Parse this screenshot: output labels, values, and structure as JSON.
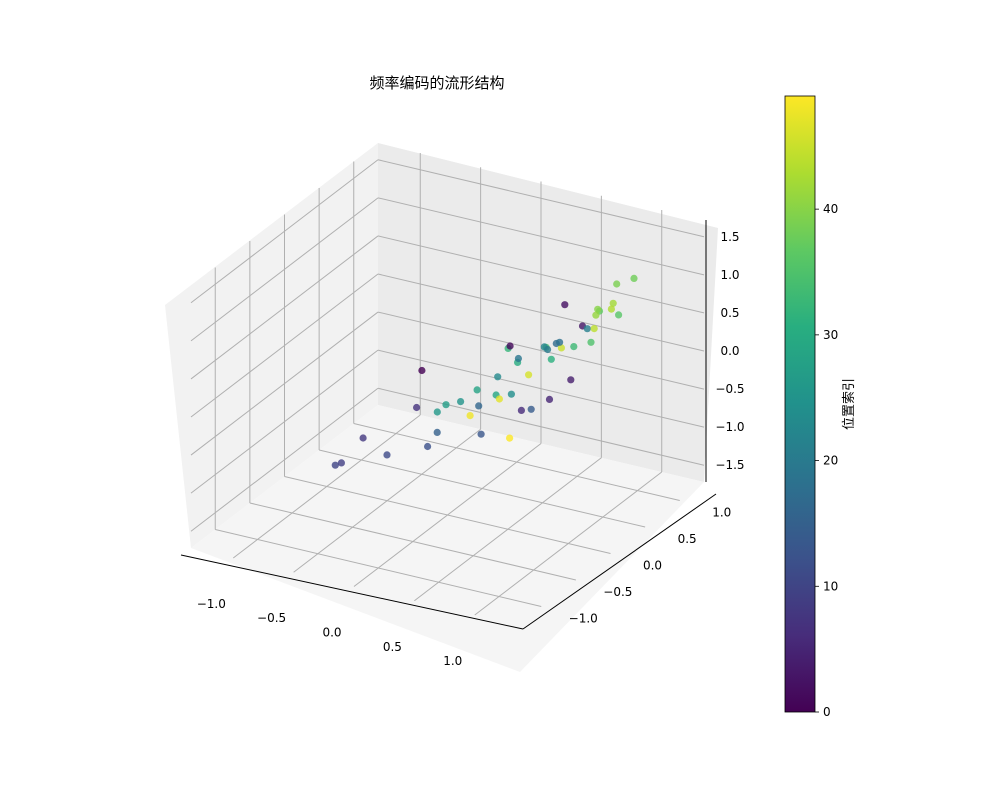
{
  "chart_data": {
    "type": "scatter3d",
    "title": "频率编码的流形结构",
    "xlabel": "",
    "ylabel": "",
    "zlabel": "",
    "x_ticks": [
      "−1.0",
      "−0.5",
      "0.0",
      "0.5",
      "1.0"
    ],
    "y_ticks": [
      "−1.0",
      "−0.5",
      "0.0",
      "0.5",
      "1.0"
    ],
    "z_ticks": [
      "−1.5",
      "−1.0",
      "−0.5",
      "0.0",
      "0.5",
      "1.0",
      "1.5"
    ],
    "grid": true,
    "colormap": "viridis",
    "colorbar": {
      "label": "位置索引",
      "range": [
        0,
        49
      ],
      "ticks": [
        "0",
        "10",
        "20",
        "30",
        "40"
      ]
    },
    "points": [
      {
        "index": 0,
        "x": 0.98,
        "y": 0.35,
        "z": 0.99
      },
      {
        "index": 1,
        "x": 0.7,
        "y": 0.92,
        "z": 1.33
      },
      {
        "index": 2,
        "x": 0.05,
        "y": 1.0,
        "z": 1.45
      },
      {
        "index": 3,
        "x": -0.45,
        "y": 0.86,
        "z": 0.77
      },
      {
        "index": 4,
        "x": -0.7,
        "y": 0.62,
        "z": -0.2
      },
      {
        "index": 5,
        "x": -0.95,
        "y": 0.3,
        "z": -0.75
      },
      {
        "index": 6,
        "x": -0.98,
        "y": 0.05,
        "z": -1.01
      },
      {
        "index": 7,
        "x": -0.6,
        "y": -0.6,
        "z": -0.95
      },
      {
        "index": 8,
        "x": -0.35,
        "y": -0.9,
        "z": -1.29
      },
      {
        "index": 9,
        "x": 0.05,
        "y": -0.85,
        "z": -1.32
      },
      {
        "index": 10,
        "x": 0.4,
        "y": -0.7,
        "z": -1.05
      },
      {
        "index": 11,
        "x": 0.35,
        "y": -0.3,
        "z": -0.8
      },
      {
        "index": 12,
        "x": 0.2,
        "y": -0.05,
        "z": -0.7
      },
      {
        "index": 13,
        "x": -0.05,
        "y": 0.25,
        "z": -0.6
      },
      {
        "index": 14,
        "x": -0.25,
        "y": 0.55,
        "z": -0.3
      },
      {
        "index": 15,
        "x": -0.2,
        "y": -0.2,
        "z": -0.85
      },
      {
        "index": 16,
        "x": -0.45,
        "y": 0.0,
        "z": -0.6
      },
      {
        "index": 17,
        "x": -0.35,
        "y": 0.7,
        "z": 0.55
      },
      {
        "index": 18,
        "x": -0.05,
        "y": 0.9,
        "z": 0.85
      },
      {
        "index": 19,
        "x": -0.5,
        "y": 0.3,
        "z": 0.1
      },
      {
        "index": 20,
        "x": -0.4,
        "y": 0.6,
        "z": 0.4
      },
      {
        "index": 21,
        "x": -0.45,
        "y": 0.9,
        "z": 0.75
      },
      {
        "index": 22,
        "x": -0.7,
        "y": 0.4,
        "z": 0.15
      },
      {
        "index": 23,
        "x": -0.55,
        "y": 0.1,
        "z": -0.25
      },
      {
        "index": 24,
        "x": -0.4,
        "y": 0.3,
        "z": -0.3
      },
      {
        "index": 25,
        "x": -0.45,
        "y": -0.15,
        "z": -0.6
      },
      {
        "index": 26,
        "x": -0.55,
        "y": -0.4,
        "z": -0.9
      },
      {
        "index": 27,
        "x": -0.85,
        "y": -0.5,
        "z": -1.05
      },
      {
        "index": 28,
        "x": -0.95,
        "y": -0.3,
        "z": -0.85
      },
      {
        "index": 29,
        "x": -1.05,
        "y": -0.2,
        "z": -0.95
      },
      {
        "index": 30,
        "x": -1.1,
        "y": -0.05,
        "z": -0.5
      },
      {
        "index": 31,
        "x": -1.15,
        "y": 0.2,
        "z": -0.4
      },
      {
        "index": 32,
        "x": -1.05,
        "y": -0.1,
        "z": -0.3
      },
      {
        "index": 33,
        "x": -1.3,
        "y": 0.3,
        "z": -0.3
      },
      {
        "index": 34,
        "x": -1.25,
        "y": 0.1,
        "z": -0.35
      },
      {
        "index": 35,
        "x": -1.2,
        "y": 0.5,
        "z": -0.1
      },
      {
        "index": 36,
        "x": -1.25,
        "y": 0.7,
        "z": 0.3
      },
      {
        "index": 37,
        "x": -0.8,
        "y": 0.8,
        "z": 0.7
      },
      {
        "index": 38,
        "x": -0.95,
        "y": 1.0,
        "z": 1.1
      },
      {
        "index": 39,
        "x": -0.7,
        "y": 1.0,
        "z": 1.2
      },
      {
        "index": 40,
        "x": -0.6,
        "y": 0.9,
        "z": 0.9
      },
      {
        "index": 41,
        "x": -0.4,
        "y": 1.0,
        "z": 1.0
      },
      {
        "index": 42,
        "x": -0.3,
        "y": 1.2,
        "z": 1.3
      },
      {
        "index": 43,
        "x": -0.1,
        "y": 1.3,
        "z": 1.4
      },
      {
        "index": 44,
        "x": -0.2,
        "y": 1.1,
        "z": 1.0
      },
      {
        "index": 45,
        "x": -0.25,
        "y": 0.8,
        "z": 0.6
      },
      {
        "index": 46,
        "x": -0.3,
        "y": 0.5,
        "z": 0.1
      },
      {
        "index": 47,
        "x": -0.4,
        "y": 0.2,
        "z": -0.4
      },
      {
        "index": 48,
        "x": -0.5,
        "y": -0.1,
        "z": -0.8
      },
      {
        "index": 49,
        "x": -0.2,
        "y": 0.4,
        "z": -0.7
      }
    ]
  }
}
